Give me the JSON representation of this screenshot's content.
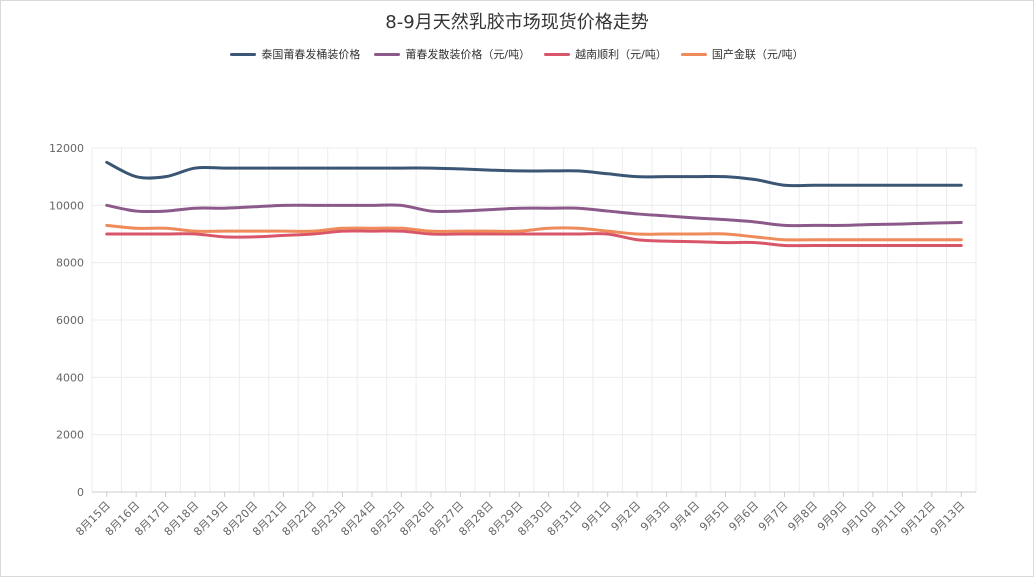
{
  "chart_data": {
    "type": "line",
    "title": "8-9月天然乳胶市场现货价格走势",
    "categories": [
      "8月15日",
      "8月16日",
      "8月17日",
      "8月18日",
      "8月19日",
      "8月20日",
      "8月21日",
      "8月22日",
      "8月23日",
      "8月24日",
      "8月25日",
      "8月26日",
      "8月27日",
      "8月28日",
      "8月29日",
      "8月30日",
      "8月31日",
      "9月1日",
      "9月2日",
      "9月3日",
      "9月4日",
      "9月5日",
      "9月6日",
      "9月7日",
      "9月8日",
      "9月9日",
      "9月10日",
      "9月11日",
      "9月12日",
      "9月13日"
    ],
    "ylim": [
      0,
      12000
    ],
    "yticks": [
      "0",
      "2000",
      "4000",
      "6000",
      "8000",
      "10000",
      "12000"
    ],
    "grid": true,
    "legend_position": "top",
    "series": [
      {
        "name": "泰国莆春发桶装价格",
        "color": "#3b5674",
        "values": [
          11500,
          11000,
          11000,
          11300,
          11300,
          11300,
          11300,
          11300,
          11300,
          11300,
          11300,
          11300,
          11270,
          11230,
          11200,
          11200,
          11200,
          11100,
          11000,
          11000,
          11000,
          11000,
          10900,
          10700,
          10700,
          10700,
          10700,
          10700,
          10700,
          10700
        ]
      },
      {
        "name": "莆春发散装价格（元/吨）",
        "color": "#8c5a8a",
        "values": [
          10000,
          9800,
          9800,
          9900,
          9900,
          9950,
          10000,
          10000,
          10000,
          10000,
          10000,
          9800,
          9800,
          9850,
          9900,
          9900,
          9900,
          9800,
          9700,
          9630,
          9560,
          9500,
          9420,
          9300,
          9300,
          9300,
          9330,
          9350,
          9380,
          9400
        ]
      },
      {
        "name": "越南顺利（元/吨）",
        "color": "#d9566a",
        "values": [
          9000,
          9000,
          9000,
          9000,
          8900,
          8900,
          8950,
          9000,
          9100,
          9100,
          9100,
          9000,
          9000,
          9000,
          9000,
          9000,
          9000,
          9000,
          8800,
          8750,
          8730,
          8700,
          8700,
          8600,
          8600,
          8600,
          8600,
          8600,
          8600,
          8600
        ]
      },
      {
        "name": "国产金联（元/吨）",
        "color": "#ef8a5a",
        "values": [
          9300,
          9200,
          9200,
          9100,
          9100,
          9100,
          9100,
          9100,
          9200,
          9200,
          9200,
          9100,
          9100,
          9100,
          9100,
          9200,
          9200,
          9100,
          9000,
          9000,
          9000,
          9000,
          8900,
          8800,
          8800,
          8800,
          8800,
          8800,
          8800,
          8800
        ]
      }
    ]
  }
}
